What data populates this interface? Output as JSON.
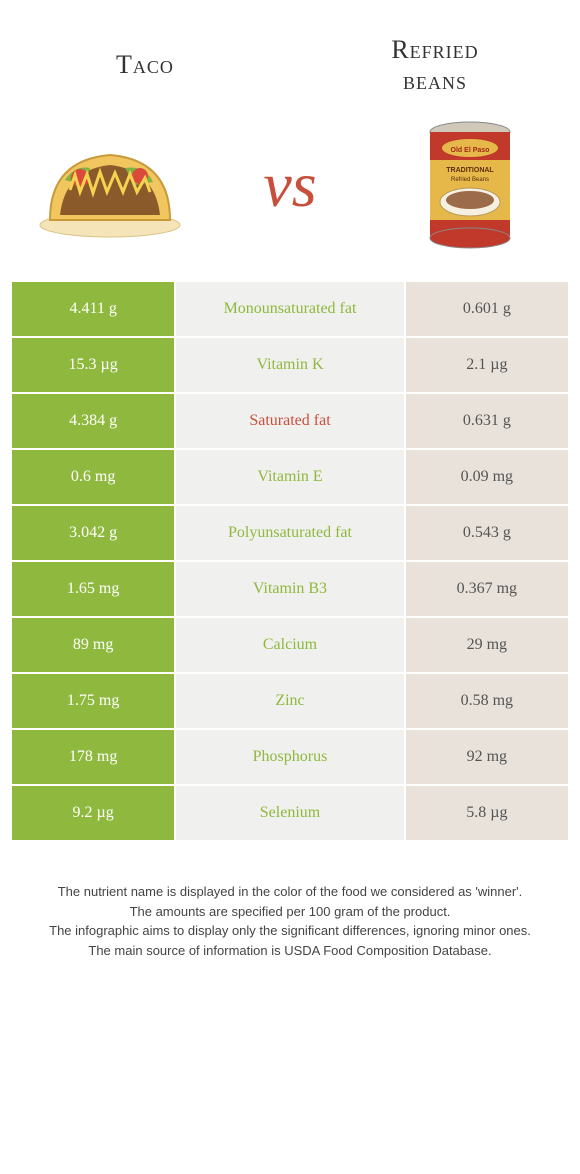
{
  "header": {
    "left_title": "Taco",
    "right_title": "Refried\nbeans",
    "vs": "vs"
  },
  "colors": {
    "green": "#8fb93e",
    "red": "#c94f3d",
    "beige": "#e8e2da",
    "lightgrey": "#f0f0ee",
    "white": "#ffffff",
    "text": "#333333"
  },
  "rows": [
    {
      "left": "4.411 g",
      "label": "Monounsaturated fat",
      "right": "0.601 g",
      "winner": "green"
    },
    {
      "left": "15.3 µg",
      "label": "Vitamin K",
      "right": "2.1 µg",
      "winner": "green"
    },
    {
      "left": "4.384 g",
      "label": "Saturated fat",
      "right": "0.631 g",
      "winner": "red"
    },
    {
      "left": "0.6 mg",
      "label": "Vitamin E",
      "right": "0.09 mg",
      "winner": "green"
    },
    {
      "left": "3.042 g",
      "label": "Polyunsaturated fat",
      "right": "0.543 g",
      "winner": "green"
    },
    {
      "left": "1.65 mg",
      "label": "Vitamin B3",
      "right": "0.367 mg",
      "winner": "green"
    },
    {
      "left": "89 mg",
      "label": "Calcium",
      "right": "29 mg",
      "winner": "green"
    },
    {
      "left": "1.75 mg",
      "label": "Zinc",
      "right": "0.58 mg",
      "winner": "green"
    },
    {
      "left": "178 mg",
      "label": "Phosphorus",
      "right": "92 mg",
      "winner": "green"
    },
    {
      "left": "9.2 µg",
      "label": "Selenium",
      "right": "5.8 µg",
      "winner": "green"
    }
  ],
  "footer": {
    "line1": "The nutrient name is displayed in the color of the food we considered as 'winner'.",
    "line2": "The amounts are specified per 100 gram of the product.",
    "line3": "The infographic aims to display only the significant differences, ignoring minor ones.",
    "line4": "The main source of information is USDA Food Composition Database."
  }
}
